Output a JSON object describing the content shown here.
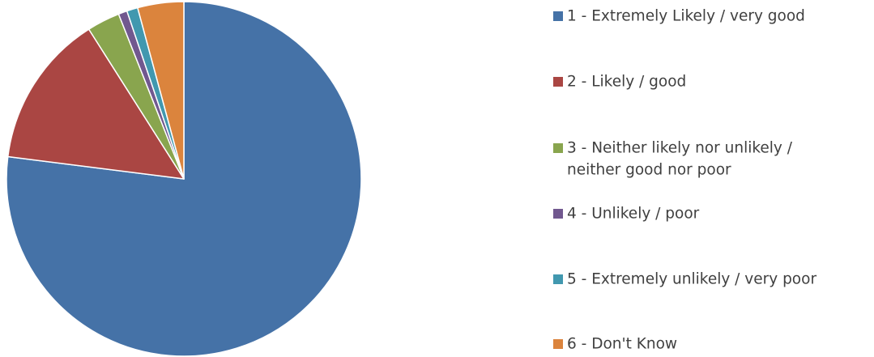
{
  "chart_data": {
    "type": "pie",
    "title": "",
    "legend_placement": "right",
    "slices": [
      {
        "label": "1 - Extremely Likely / very good",
        "value": 77,
        "color": "#4572A7"
      },
      {
        "label": "2 - Likely / good",
        "value": 14,
        "color": "#AA4643"
      },
      {
        "label": "3 - Neither likely nor unlikely / neither good nor poor",
        "value": 3,
        "color": "#89A54E"
      },
      {
        "label": "4 - Unlikely / poor",
        "value": 0.8,
        "color": "#71588F"
      },
      {
        "label": "5 - Extremely unlikely / very poor",
        "value": 1,
        "color": "#4198AF"
      },
      {
        "label": "6 - Don't Know",
        "value": 4.2,
        "color": "#DB843D"
      }
    ],
    "legend_lines": [
      [
        "1 - Extremely Likely / very good"
      ],
      [
        "2 - Likely / good"
      ],
      [
        "3 - Neither likely nor unlikely /",
        "neither good nor poor"
      ],
      [
        "4 - Unlikely / poor"
      ],
      [
        "5 - Extremely unlikely / very poor"
      ],
      [
        "6 - Don't Know"
      ]
    ]
  }
}
